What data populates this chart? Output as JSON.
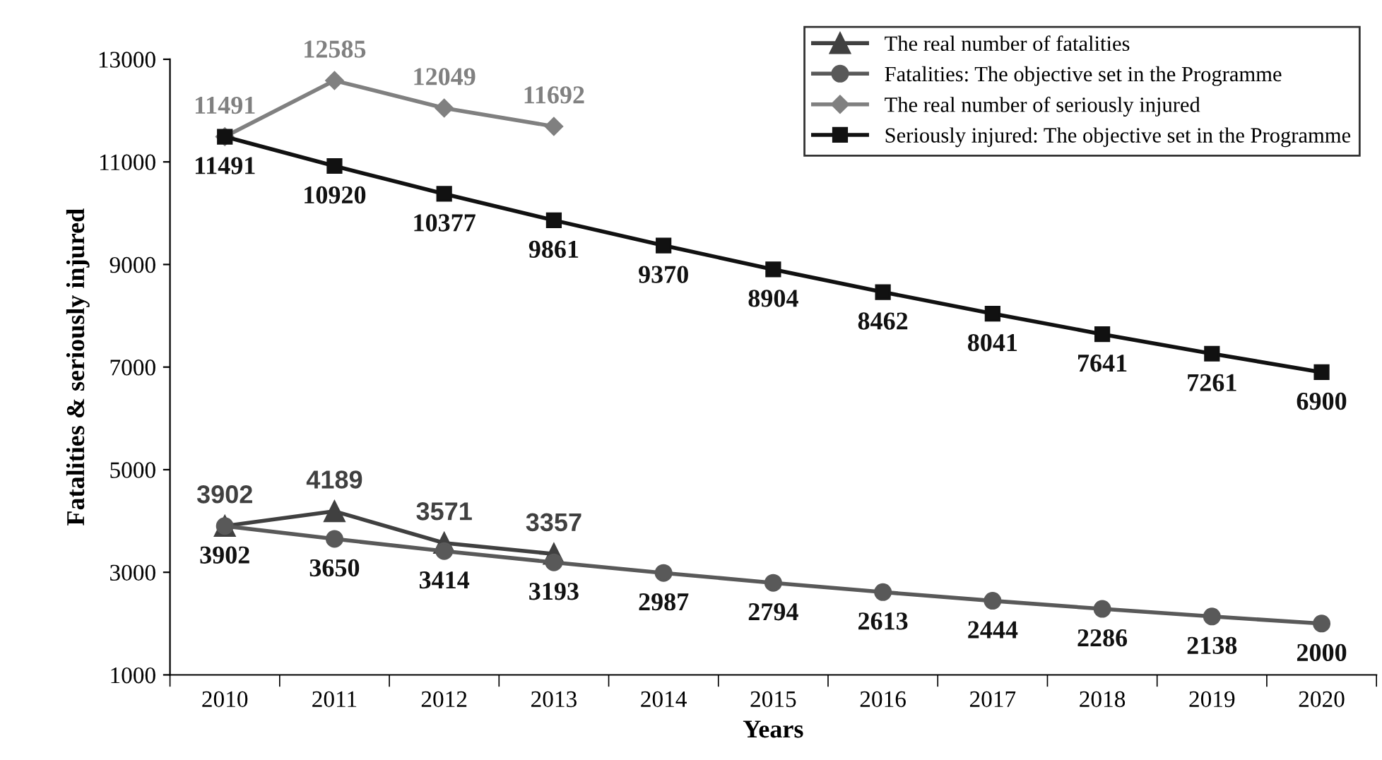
{
  "chart_data": {
    "type": "line",
    "xlabel": "Years",
    "ylabel": "Fatalities & seriously injured",
    "categories": [
      "2010",
      "2011",
      "2012",
      "2013",
      "2014",
      "2015",
      "2016",
      "2017",
      "2018",
      "2019",
      "2020"
    ],
    "series": [
      {
        "name": "The real number of fatalities",
        "color": "#404040",
        "marker": "triangle",
        "values": [
          3902,
          4189,
          3571,
          3357,
          null,
          null,
          null,
          null,
          null,
          null,
          null
        ]
      },
      {
        "name": "Fatalities: The objective set in the Programme",
        "color": "#595959",
        "marker": "circle",
        "values": [
          3902,
          3650,
          3414,
          3193,
          2987,
          2794,
          2613,
          2444,
          2286,
          2138,
          2000
        ]
      },
      {
        "name": "The real number of seriously injured",
        "color": "#808080",
        "marker": "diamond",
        "values": [
          11491,
          12585,
          12049,
          11692,
          null,
          null,
          null,
          null,
          null,
          null,
          null
        ]
      },
      {
        "name": "Seriously injured: The objective set in the Programme",
        "color": "#111111",
        "marker": "square",
        "values": [
          11491,
          10920,
          10377,
          9861,
          9370,
          8904,
          8462,
          8041,
          7641,
          7261,
          6900
        ]
      }
    ],
    "ylim": [
      1000,
      13000
    ],
    "yticks": [
      1000,
      3000,
      5000,
      7000,
      9000,
      11000,
      13000
    ],
    "grid": false,
    "legend": "top right",
    "data_labels": true,
    "line_style": "solid"
  }
}
